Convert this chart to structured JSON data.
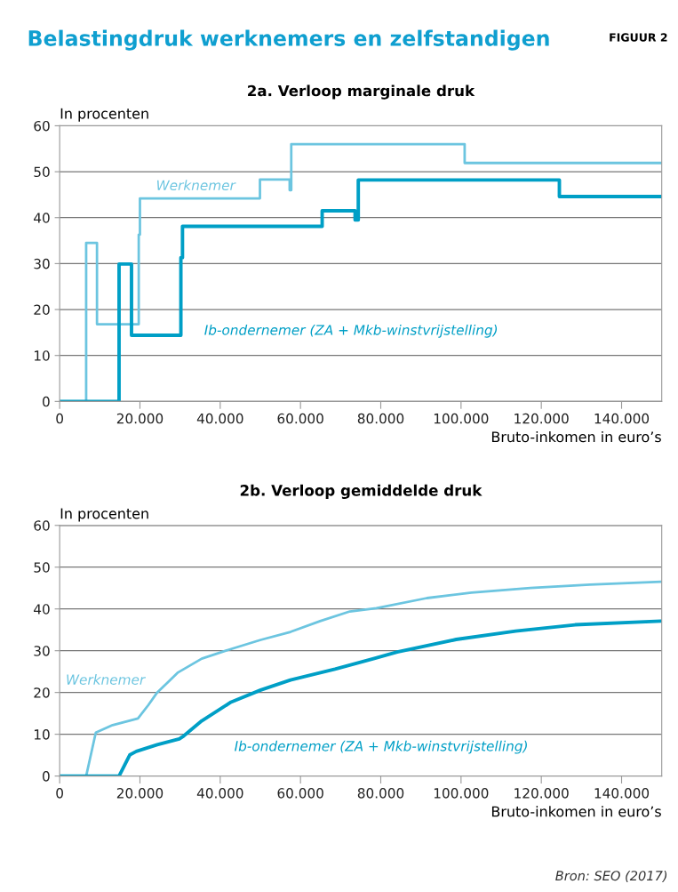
{
  "chart_data": [
    {
      "type": "step",
      "title": "Belastingdruk werknemers en zelfstandigen",
      "subtitle": "2a. Verloop marginale druk",
      "xlabel": "Bruto-inkomen in euro’s",
      "ylabel": "In procenten",
      "annotations": [
        "FIGUUR 2"
      ],
      "xlim": [
        0,
        150000
      ],
      "xticks": [
        0,
        {
          "value": 20000,
          "label": "20.000"
        },
        {
          "value": 40000,
          "label": "40.000"
        },
        {
          "value": 60000,
          "label": "60.000"
        },
        {
          "value": 80000,
          "label": "80.000"
        },
        {
          "value": 100000,
          "label": "100.000"
        },
        {
          "value": 120000,
          "label": "120.000"
        },
        {
          "value": 140000,
          "label": "140.000"
        }
      ],
      "ylim": [
        0,
        60
      ],
      "yticks": [
        0,
        10,
        20,
        30,
        40,
        50,
        60
      ],
      "grid": "y",
      "legend": false,
      "series": [
        {
          "name": "Werknemer",
          "color": "#6cc5e0",
          "x": [
            0,
            6600,
            9300,
            19700,
            20000,
            49900,
            57300,
            57700,
            100900,
            150000
          ],
          "values": [
            0,
            34.5,
            16.8,
            36.3,
            44.2,
            48.3,
            46,
            56,
            51.9,
            51.9
          ]
        },
        {
          "name": "Ib-ondernemer (ZA + Mkb-winstvrijstelling)",
          "color": "#009fc6",
          "x": [
            0,
            14800,
            17900,
            30200,
            30600,
            65400,
            73600,
            74400,
            124500,
            150000
          ],
          "values": [
            0,
            29.9,
            14.4,
            31.3,
            38.1,
            41.5,
            39.5,
            48.2,
            44.6,
            44.6
          ]
        }
      ]
    },
    {
      "type": "line",
      "title": "2b. Verloop gemiddelde druk",
      "xlabel": "Bruto-inkomen in euro’s",
      "ylabel": "In procenten",
      "annotations": [
        "Bron: SEO (2017)"
      ],
      "xlim": [
        0,
        150000
      ],
      "xticks": [
        0,
        {
          "value": 20000,
          "label": "20.000"
        },
        {
          "value": 40000,
          "label": "40.000"
        },
        {
          "value": 60000,
          "label": "60.000"
        },
        {
          "value": 80000,
          "label": "80.000"
        },
        {
          "value": 100000,
          "label": "100.000"
        },
        {
          "value": 120000,
          "label": "120.000"
        },
        {
          "value": 140000,
          "label": "140.000"
        }
      ],
      "ylim": [
        0,
        60
      ],
      "yticks": [
        0,
        10,
        20,
        30,
        40,
        50,
        60
      ],
      "grid": "y",
      "legend": false,
      "series": [
        {
          "name": "Werknemer",
          "color": "#6cc5e0",
          "x": [
            0,
            6600,
            9000,
            13200,
            19500,
            22100,
            24300,
            29500,
            35400,
            42000,
            50100,
            57500,
            64900,
            72300,
            78900,
            91500,
            102600,
            117300,
            132100,
            149800
          ],
          "values": [
            0,
            0,
            10.4,
            12.2,
            13.8,
            17.0,
            20.0,
            24.8,
            28.1,
            30.2,
            32.6,
            34.5,
            37.1,
            39.4,
            40.2,
            42.6,
            43.9,
            45.0,
            45.8,
            46.5
          ]
        },
        {
          "name": "Ib-ondernemer (ZA + Mkb-winstvrijstelling)",
          "color": "#009fc6",
          "x": [
            0,
            14800,
            17500,
            19100,
            24300,
            29800,
            30900,
            35400,
            42700,
            50100,
            57500,
            68600,
            78200,
            84100,
            98800,
            113600,
            128400,
            149800
          ],
          "values": [
            0,
            0,
            5.1,
            5.9,
            7.5,
            8.9,
            9.6,
            13.2,
            17.7,
            20.6,
            23.0,
            25.6,
            28.1,
            29.7,
            32.7,
            34.7,
            36.2,
            37.1
          ]
        }
      ]
    }
  ]
}
